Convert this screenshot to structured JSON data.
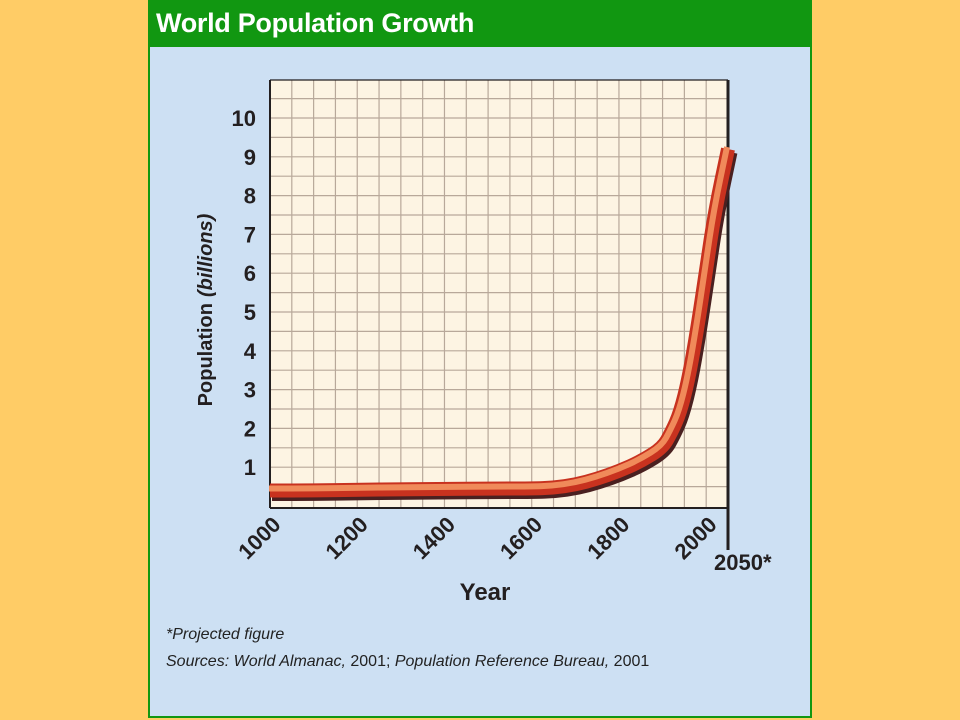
{
  "chart_data": {
    "type": "line",
    "title": "World Population Growth",
    "xlabel": "Year",
    "ylabel_main": "Population",
    "ylabel_unit": "(billions)",
    "x_ticks": [
      "1000",
      "1200",
      "1400",
      "1600",
      "1800",
      "2000"
    ],
    "x_end_label": "2050*",
    "y_ticks": [
      "1",
      "2",
      "3",
      "4",
      "5",
      "6",
      "7",
      "8",
      "9",
      "10"
    ],
    "xlim": [
      1000,
      2050
    ],
    "ylim": [
      0,
      11
    ],
    "grid": true,
    "series": [
      {
        "x": [
          1000,
          1100,
          1200,
          1300,
          1400,
          1500,
          1600,
          1650,
          1700,
          1750,
          1800,
          1850,
          1900,
          1920,
          1940,
          1960,
          1980,
          2000,
          2020,
          2050
        ],
        "y": [
          0.4,
          0.4,
          0.42,
          0.43,
          0.44,
          0.45,
          0.45,
          0.47,
          0.55,
          0.7,
          0.9,
          1.15,
          1.5,
          1.9,
          2.4,
          3.3,
          4.6,
          6.1,
          7.6,
          9.2
        ],
        "color": "#e05a2b"
      }
    ]
  },
  "footnote": "*Projected figure",
  "sources": {
    "prefix": "Sources: ",
    "source1": "World Almanac,",
    "year1": " 2001; ",
    "source2": "Population Reference Bureau,",
    "year2": " 2001"
  },
  "colors": {
    "background": "#ffcc66",
    "panel": "#cde0f3",
    "title_bar": "#119711",
    "plot_area": "#fdf4e3",
    "grid": "#b8a89a"
  }
}
